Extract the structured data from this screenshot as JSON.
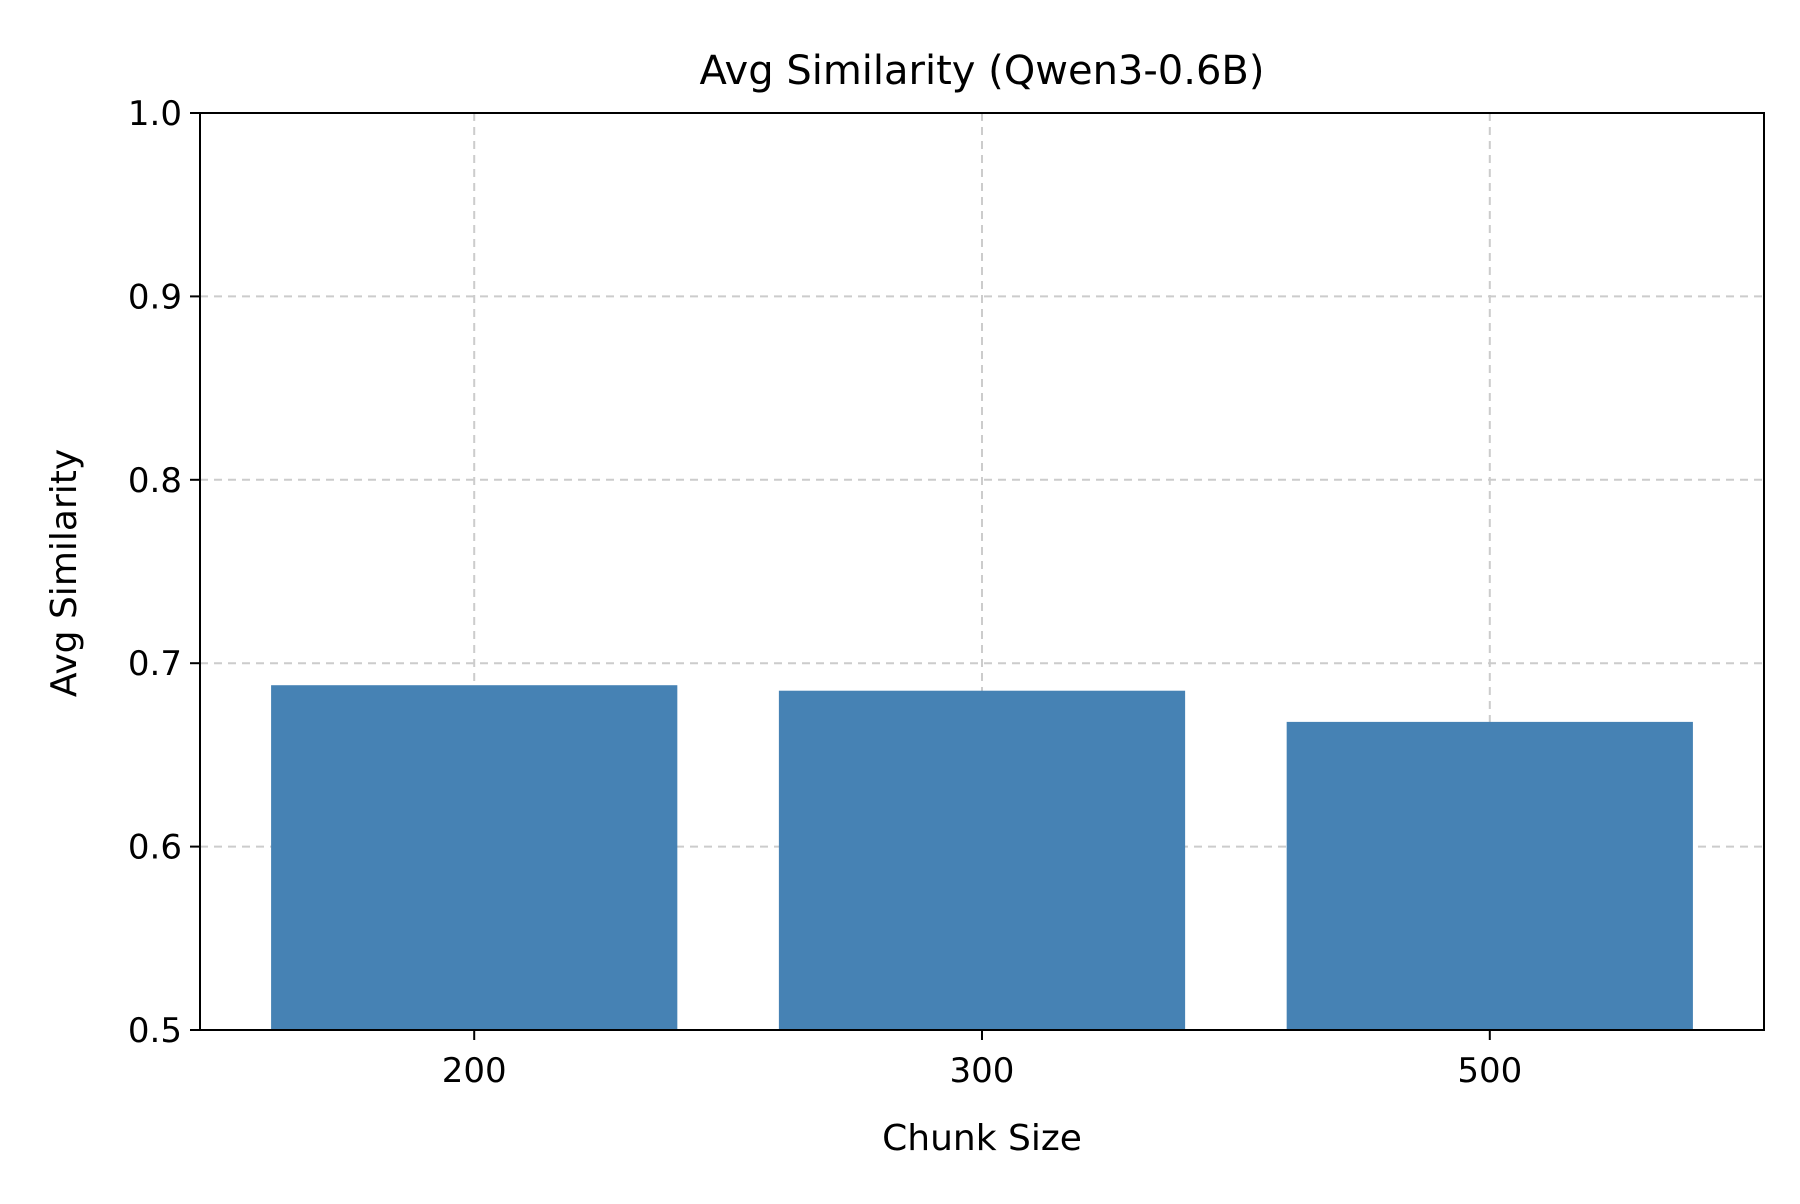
{
  "chart_data": {
    "type": "bar",
    "title": "Avg Similarity (Qwen3-0.6B)",
    "xlabel": "Chunk Size",
    "ylabel": "Avg Similarity",
    "categories": [
      "200",
      "300",
      "500"
    ],
    "values": [
      0.688,
      0.685,
      0.668
    ],
    "ylim": [
      0.5,
      1.0
    ],
    "yticks": [
      "0.5",
      "0.6",
      "0.7",
      "0.8",
      "0.9",
      "1.0"
    ],
    "grid": true,
    "legend": "none",
    "colors": {
      "bar": "#4682b4",
      "grid": "#cccccc",
      "axis": "#000000"
    }
  }
}
